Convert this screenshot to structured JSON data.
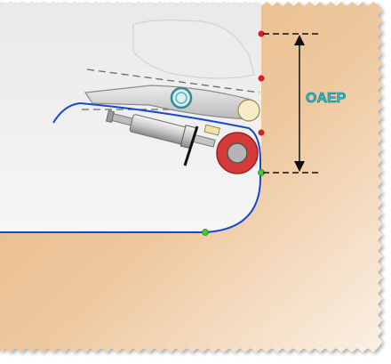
{
  "diagram": {
    "dimension_label": "OAEP",
    "colors": {
      "material": "#e8bd8c",
      "material_light": "#f7e6d2",
      "workspace": "#f1f1f1",
      "contour": "#1a47c8",
      "roller_outer": "#d63b3b",
      "roller_inner": "#b5b5b5",
      "point_red": "#d81e1e",
      "point_green": "#3ccb3c",
      "dimension_line": "#111111",
      "label": "#27c4d6"
    },
    "icons": [
      "roller-icon",
      "pneumatic-cylinder-icon",
      "gripper-jaw-icon",
      "sensor-ring-icon"
    ]
  }
}
